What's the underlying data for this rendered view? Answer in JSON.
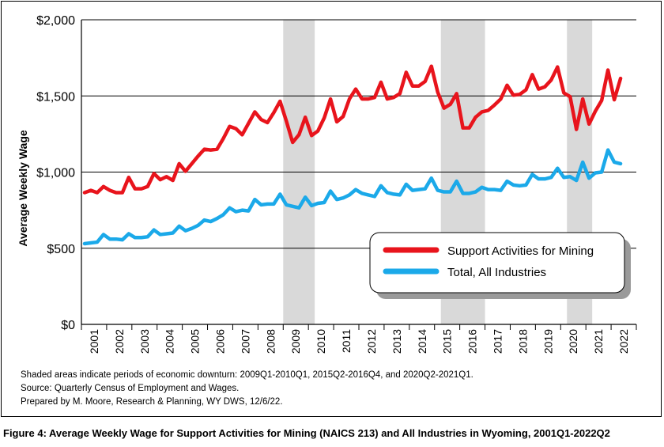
{
  "chart_data": {
    "type": "line",
    "ylabel": "Average Weekly Wage",
    "xlabel": "",
    "ylim": [
      0,
      2000
    ],
    "yticks": [
      0,
      500,
      1000,
      1500,
      2000
    ],
    "ytick_labels": [
      "$0",
      "$500",
      "$1,000",
      "$1,500",
      "$2,000"
    ],
    "xticks": [
      "2001",
      "2002",
      "2003",
      "2004",
      "2005",
      "2006",
      "2007",
      "2008",
      "2009",
      "2010",
      "2011",
      "2012",
      "2013",
      "2014",
      "2015",
      "2016",
      "2017",
      "2018",
      "2019",
      "2020",
      "2021",
      "2022"
    ],
    "x_start_quarter": "2001Q1",
    "x_end_quarter": "2022Q2",
    "grid": "horizontal",
    "legend_position": "bottom-right",
    "shaded_periods": [
      {
        "start": "2009Q1",
        "end": "2010Q1"
      },
      {
        "start": "2015Q2",
        "end": "2016Q4"
      },
      {
        "start": "2020Q2",
        "end": "2021Q1"
      }
    ],
    "series": [
      {
        "name": "Support Activities for Mining",
        "color": "#e8141c",
        "values": [
          865,
          880,
          865,
          905,
          880,
          865,
          865,
          965,
          890,
          890,
          905,
          990,
          950,
          970,
          945,
          1055,
          1005,
          1055,
          1105,
          1150,
          1145,
          1150,
          1220,
          1300,
          1285,
          1245,
          1320,
          1395,
          1345,
          1325,
          1390,
          1465,
          1335,
          1195,
          1245,
          1360,
          1240,
          1270,
          1355,
          1480,
          1330,
          1365,
          1480,
          1545,
          1480,
          1480,
          1490,
          1590,
          1480,
          1490,
          1515,
          1655,
          1565,
          1565,
          1595,
          1695,
          1525,
          1420,
          1445,
          1515,
          1290,
          1290,
          1360,
          1395,
          1405,
          1440,
          1480,
          1570,
          1505,
          1510,
          1540,
          1640,
          1545,
          1560,
          1605,
          1690,
          1520,
          1495,
          1280,
          1480,
          1315,
          1400,
          1470,
          1670,
          1475,
          1615
        ]
      },
      {
        "name": "Total, All Industries",
        "color": "#1ba9e9",
        "values": [
          530,
          535,
          540,
          590,
          560,
          560,
          555,
          595,
          570,
          570,
          575,
          620,
          590,
          595,
          600,
          645,
          615,
          630,
          650,
          685,
          675,
          695,
          720,
          765,
          740,
          750,
          745,
          820,
          785,
          790,
          790,
          855,
          785,
          775,
          765,
          835,
          780,
          795,
          800,
          875,
          820,
          830,
          850,
          885,
          860,
          850,
          840,
          910,
          865,
          855,
          850,
          920,
          880,
          885,
          890,
          960,
          880,
          870,
          870,
          940,
          860,
          860,
          870,
          900,
          885,
          885,
          880,
          940,
          915,
          910,
          915,
          985,
          955,
          955,
          965,
          1025,
          965,
          970,
          945,
          1065,
          960,
          995,
          1000,
          1145,
          1065,
          1055
        ]
      }
    ],
    "notes": [
      "Shaded areas indicate periods of economic downturn: 2009Q1-2010Q1, 2015Q2-2016Q4, and 2020Q2-2021Q1.",
      "Source: Quarterly Census of Employment and Wages.",
      "Prepared by M. Moore, Research & Planning, WY DWS, 12/6/22."
    ],
    "caption": "Figure 4: Average Weekly Wage for Support Activities for Mining (NAICS 213) and All Industries in Wyoming, 2001Q1-2022Q2"
  }
}
